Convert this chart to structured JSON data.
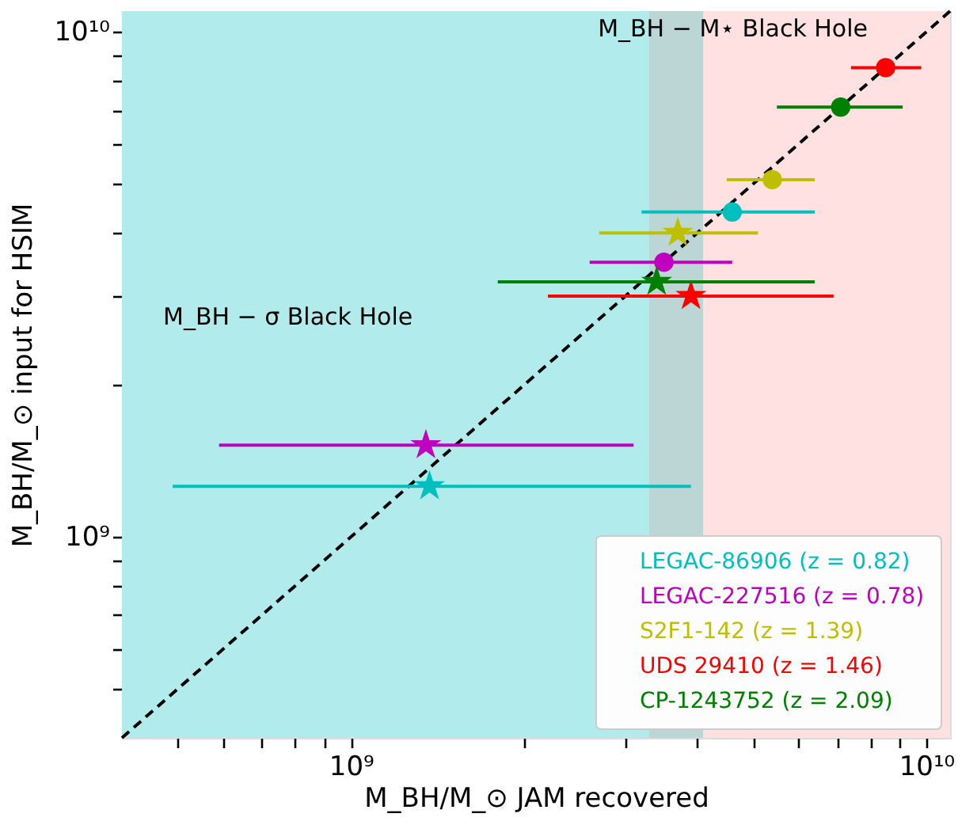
{
  "chart_data": {
    "type": "scatter",
    "xlabel": "M_BH/M_⊙ JAM recovered",
    "ylabel": "M_BH/M_⊙ input for HSIM",
    "log": "xy",
    "grid": false,
    "legend": "bottom right",
    "xlim": [
      400000000.0,
      11000000000.0
    ],
    "ylim": [
      400000000.0,
      11000000000.0
    ],
    "xticks": [
      {
        "value": 500000000.0,
        "label": null
      },
      {
        "value": 600000000.0,
        "label": null
      },
      {
        "value": 700000000.0,
        "label": null
      },
      {
        "value": 800000000.0,
        "label": null
      },
      {
        "value": 900000000.0,
        "label": null
      },
      {
        "value": 1000000000.0,
        "label": "10⁹"
      },
      {
        "value": 2000000000.0,
        "label": null
      },
      {
        "value": 3000000000.0,
        "label": null
      },
      {
        "value": 4000000000.0,
        "label": null
      },
      {
        "value": 5000000000.0,
        "label": null
      },
      {
        "value": 6000000000.0,
        "label": null
      },
      {
        "value": 7000000000.0,
        "label": null
      },
      {
        "value": 8000000000.0,
        "label": null
      },
      {
        "value": 9000000000.0,
        "label": null
      },
      {
        "value": 10000000000.0,
        "label": "10¹⁰"
      }
    ],
    "yticks": [
      {
        "value": 500000000.0,
        "label": null
      },
      {
        "value": 600000000.0,
        "label": null
      },
      {
        "value": 700000000.0,
        "label": null
      },
      {
        "value": 800000000.0,
        "label": null
      },
      {
        "value": 900000000.0,
        "label": null
      },
      {
        "value": 1000000000.0,
        "label": "10⁹"
      },
      {
        "value": 2000000000.0,
        "label": null
      },
      {
        "value": 3000000000.0,
        "label": null
      },
      {
        "value": 4000000000.0,
        "label": null
      },
      {
        "value": 5000000000.0,
        "label": null
      },
      {
        "value": 6000000000.0,
        "label": null
      },
      {
        "value": 7000000000.0,
        "label": null
      },
      {
        "value": 8000000000.0,
        "label": null
      },
      {
        "value": 9000000000.0,
        "label": null
      },
      {
        "value": 10000000000.0,
        "label": "10¹⁰"
      }
    ],
    "annotations": [
      "M_BH − σ Black Hole",
      "M_BH − M⋆ Black Hole"
    ],
    "bands": [
      {
        "axis": "x",
        "from": 400000000.0,
        "to": 3300000000.0,
        "color": "#b2ebeb"
      },
      {
        "axis": "x",
        "from": 3300000000.0,
        "to": 4100000000.0,
        "color": "#bcd6d6"
      },
      {
        "axis": "x",
        "from": 4100000000.0,
        "to": 11000000000.0,
        "color": "#ffe1e1"
      }
    ],
    "series": [
      {
        "type": "line",
        "color": "#000000",
        "line_style": "dashed",
        "marker": "none",
        "x": [
          400000000.0,
          11000000000.0
        ],
        "values": [
          400000000.0,
          11000000000.0
        ]
      },
      {
        "name": "LEGAC-86906 (z = 0.82)",
        "color": "#00bfbf",
        "marker": "circle",
        "x": [
          4600000000.0
        ],
        "values": [
          4400000000.0
        ],
        "xerrors": [
          [
            3200000000.0,
            6400000000.0
          ]
        ]
      },
      {
        "color": "#00bfbf",
        "marker": "star",
        "x": [
          1370000000.0
        ],
        "values": [
          1260000000.0
        ],
        "xerrors": [
          [
            490000000.0,
            3900000000.0
          ]
        ]
      },
      {
        "name": "LEGAC-227516 (z = 0.78)",
        "color": "#bf00bf",
        "marker": "circle",
        "x": [
          3500000000.0
        ],
        "values": [
          3500000000.0
        ],
        "xerrors": [
          [
            2600000000.0,
            4600000000.0
          ]
        ]
      },
      {
        "color": "#bf00bf",
        "marker": "star",
        "x": [
          1350000000.0
        ],
        "values": [
          1520000000.0
        ],
        "xerrors": [
          [
            590000000.0,
            3100000000.0
          ]
        ]
      },
      {
        "name": "S2F1-142 (z = 1.39)",
        "color": "#bfbf00",
        "marker": "circle",
        "x": [
          5400000000.0
        ],
        "values": [
          5100000000.0
        ],
        "xerrors": [
          [
            4500000000.0,
            6400000000.0
          ]
        ]
      },
      {
        "color": "#bfbf00",
        "marker": "star",
        "x": [
          3700000000.0
        ],
        "values": [
          4000000000.0
        ],
        "xerrors": [
          [
            2700000000.0,
            5100000000.0
          ]
        ]
      },
      {
        "name": "UDS 29410 (z = 1.46)",
        "color": "#ff0000",
        "marker": "circle",
        "x": [
          8500000000.0
        ],
        "values": [
          8500000000.0
        ],
        "xerrors": [
          [
            7400000000.0,
            9800000000.0
          ]
        ]
      },
      {
        "color": "#ff0000",
        "marker": "star",
        "x": [
          3900000000.0
        ],
        "values": [
          3000000000.0
        ],
        "xerrors": [
          [
            2200000000.0,
            6900000000.0
          ]
        ]
      },
      {
        "name": "CP-1243752 (z = 2.09)",
        "color": "#008000",
        "marker": "circle",
        "x": [
          7100000000.0
        ],
        "values": [
          7100000000.0
        ],
        "xerrors": [
          [
            5500000000.0,
            9100000000.0
          ]
        ]
      },
      {
        "color": "#008000",
        "marker": "star",
        "x": [
          3400000000.0
        ],
        "values": [
          3200000000.0
        ],
        "xerrors": [
          [
            1800000000.0,
            6400000000.0
          ]
        ]
      }
    ]
  }
}
